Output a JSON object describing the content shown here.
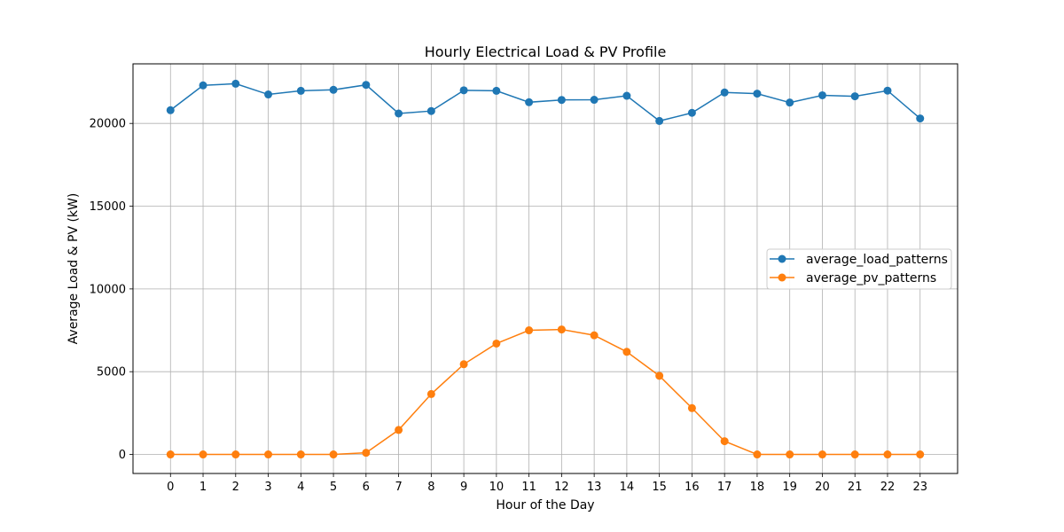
{
  "chart_data": {
    "type": "line",
    "title": "Hourly Electrical Load  & PV Profile",
    "xlabel": "Hour of the Day",
    "ylabel": "Average Load & PV (kW)",
    "x": [
      0,
      1,
      2,
      3,
      4,
      5,
      6,
      7,
      8,
      9,
      10,
      11,
      12,
      13,
      14,
      15,
      16,
      17,
      18,
      19,
      20,
      21,
      22,
      23
    ],
    "x_ticks": [
      "0",
      "1",
      "2",
      "3",
      "4",
      "5",
      "6",
      "7",
      "8",
      "9",
      "10",
      "11",
      "12",
      "13",
      "14",
      "15",
      "16",
      "17",
      "18",
      "19",
      "20",
      "21",
      "22",
      "23"
    ],
    "y_ticks": [
      0,
      5000,
      10000,
      15000,
      20000
    ],
    "y_tick_labels": [
      "0",
      "5000",
      "10000",
      "15000",
      "20000"
    ],
    "xlim": [
      -1.15,
      24.15
    ],
    "ylim": [
      -1150,
      23600
    ],
    "grid": true,
    "legend_position": "center-right",
    "series": [
      {
        "name": "average_load_patterns",
        "color": "#1f77b4",
        "marker": "circle",
        "values": [
          20800,
          22300,
          22400,
          21750,
          21970,
          22030,
          22330,
          20600,
          20750,
          22000,
          21970,
          21280,
          21420,
          21430,
          21670,
          20150,
          20640,
          21870,
          21800,
          21260,
          21700,
          21640,
          21980,
          20300
        ]
      },
      {
        "name": "average_pv_patterns",
        "color": "#ff7f0e",
        "marker": "circle",
        "values": [
          0,
          0,
          0,
          0,
          0,
          0,
          100,
          1480,
          3650,
          5450,
          6700,
          7500,
          7550,
          7200,
          6200,
          4750,
          2800,
          800,
          0,
          0,
          0,
          0,
          0,
          0
        ]
      }
    ]
  }
}
